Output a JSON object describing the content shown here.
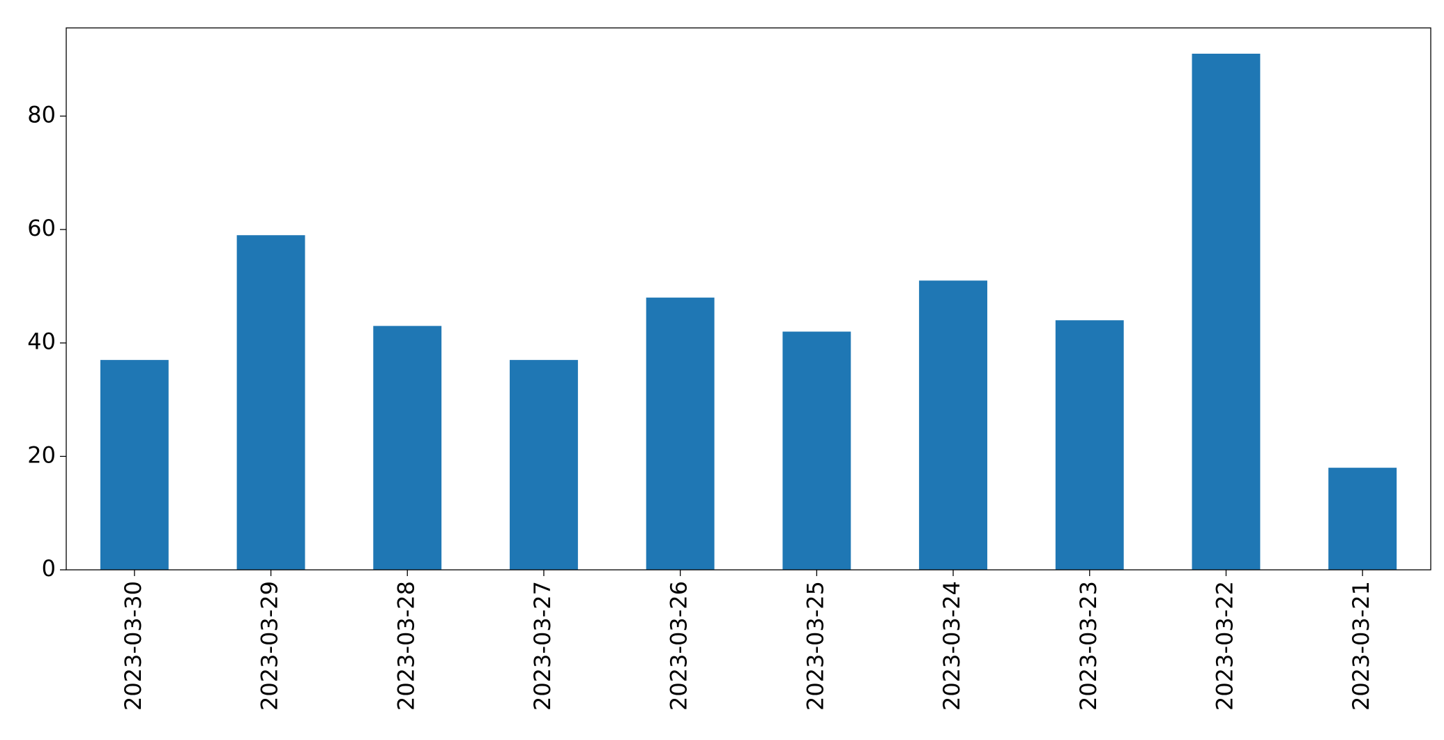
{
  "chart_data": {
    "type": "bar",
    "categories": [
      "2023-03-30",
      "2023-03-29",
      "2023-03-28",
      "2023-03-27",
      "2023-03-26",
      "2023-03-25",
      "2023-03-24",
      "2023-03-23",
      "2023-03-22",
      "2023-03-21"
    ],
    "values": [
      37,
      59,
      43,
      37,
      48,
      42,
      51,
      44,
      91,
      18
    ],
    "color": "#1f77b4",
    "ylim": [
      0,
      95.55
    ],
    "yticks": [
      0,
      20,
      40,
      60,
      80
    ],
    "grid": false
  }
}
